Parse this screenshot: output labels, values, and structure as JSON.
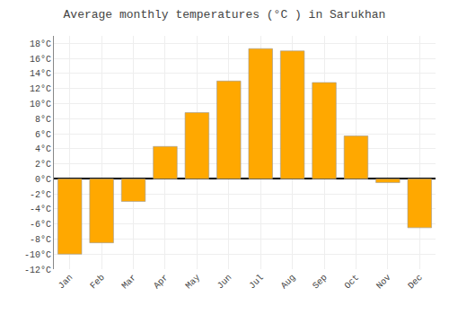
{
  "chart_data": {
    "type": "bar",
    "title": "Average monthly temperatures (°C ) in Sarukhan",
    "categories": [
      "Jan",
      "Feb",
      "Mar",
      "Apr",
      "May",
      "Jun",
      "Jul",
      "Aug",
      "Sep",
      "Oct",
      "Nov",
      "Dec"
    ],
    "values": [
      -10,
      -8.5,
      -3,
      4.3,
      8.8,
      13,
      17.3,
      17,
      12.8,
      5.7,
      -0.5,
      -6.5
    ],
    "color": "#FFA800",
    "ylim": [
      -12,
      19
    ],
    "yticks": [
      {
        "value": -12,
        "label": "-12°C"
      },
      {
        "value": -10,
        "label": "-10°C"
      },
      {
        "value": -8,
        "label": "-8°C"
      },
      {
        "value": -6,
        "label": "-6°C"
      },
      {
        "value": -4,
        "label": "-4°C"
      },
      {
        "value": -2,
        "label": "-2°C"
      },
      {
        "value": 0,
        "label": "0°C"
      },
      {
        "value": 2,
        "label": "2°C"
      },
      {
        "value": 4,
        "label": "4°C"
      },
      {
        "value": 6,
        "label": "6°C"
      },
      {
        "value": 8,
        "label": "8°C"
      },
      {
        "value": 10,
        "label": "10°C"
      },
      {
        "value": 12,
        "label": "12°C"
      },
      {
        "value": 14,
        "label": "14°C"
      },
      {
        "value": 16,
        "label": "16°C"
      },
      {
        "value": 18,
        "label": "18°C"
      }
    ],
    "grid": true
  }
}
